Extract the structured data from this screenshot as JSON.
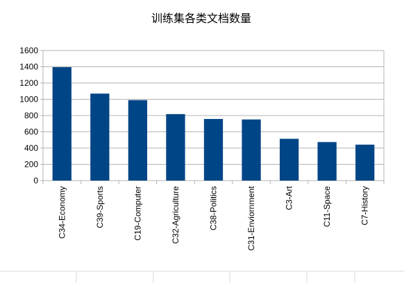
{
  "chart_data": {
    "type": "bar",
    "title": "训练集各类文档数量",
    "xlabel": "",
    "ylabel": "",
    "categories": [
      "C34-Economy",
      "C39-Sports",
      "C19-Computer",
      "C32-Agriculture",
      "C38-Politics",
      "C31-Enviornment",
      "C3-Art",
      "C11-Space",
      "C7-History"
    ],
    "values": [
      1395,
      1070,
      990,
      818,
      758,
      752,
      514,
      474,
      442
    ],
    "ylim": [
      0,
      1600
    ],
    "yticks": [
      "0",
      "200",
      "400",
      "600",
      "800",
      "1000",
      "1200",
      "1400",
      "1600"
    ],
    "grid": true,
    "legend": "none",
    "colors": {
      "bar": "#004586",
      "grid": "#b3b3b3",
      "axis": "#b3b3b3"
    }
  }
}
